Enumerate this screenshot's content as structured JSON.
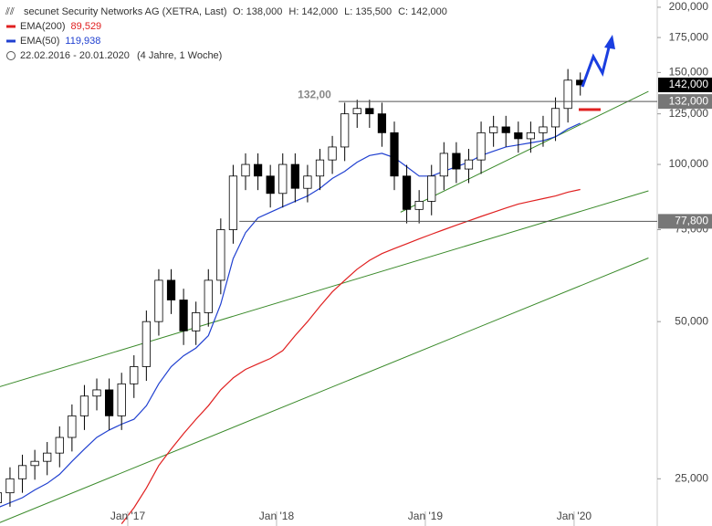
{
  "header": {
    "title": "secunet Security Networks AG (XETRA, Last)",
    "ohlc": [
      {
        "key": "O:",
        "value": "138,000"
      },
      {
        "key": "H:",
        "value": "142,000"
      },
      {
        "key": "L:",
        "value": "135,500"
      },
      {
        "key": "C:",
        "value": "142,000"
      }
    ],
    "range": "22.02.2016 - 20.01.2020",
    "duration": "(4 Jahre, 1 Woche)"
  },
  "chart_data": {
    "type": "candlestick",
    "log_scale": true,
    "x": [
      "2016-02",
      "2016-03",
      "2016-04",
      "2016-05",
      "2016-06",
      "2016-07",
      "2016-08",
      "2016-09",
      "2016-10",
      "2016-11",
      "2016-12",
      "2017-01",
      "2017-02",
      "2017-03",
      "2017-04",
      "2017-05",
      "2017-06",
      "2017-07",
      "2017-08",
      "2017-09",
      "2017-10",
      "2017-11",
      "2017-12",
      "2018-01",
      "2018-02",
      "2018-03",
      "2018-04",
      "2018-05",
      "2018-06",
      "2018-07",
      "2018-08",
      "2018-09",
      "2018-10",
      "2018-11",
      "2018-12",
      "2019-01",
      "2019-02",
      "2019-03",
      "2019-04",
      "2019-05",
      "2019-06",
      "2019-07",
      "2019-08",
      "2019-09",
      "2019-10",
      "2019-11",
      "2019-12",
      "2020-01"
    ],
    "open": [
      22500,
      23500,
      25000,
      26500,
      27000,
      28000,
      30000,
      33000,
      36000,
      37000,
      33000,
      38000,
      41000,
      50000,
      60000,
      55000,
      48000,
      52000,
      60000,
      75000,
      95000,
      100000,
      95000,
      88000,
      100000,
      90000,
      95000,
      102000,
      108000,
      125000,
      128000,
      125000,
      115000,
      95000,
      82000,
      85000,
      95000,
      105000,
      98000,
      102000,
      115000,
      118000,
      115000,
      112000,
      115000,
      118000,
      128000,
      145000
    ],
    "high": [
      24700,
      26300,
      27800,
      28400,
      29400,
      31500,
      34700,
      37800,
      38900,
      38900,
      39900,
      43100,
      52500,
      63000,
      63000,
      57800,
      54600,
      63000,
      78800,
      99800,
      105000,
      105000,
      99800,
      105000,
      105000,
      99800,
      107100,
      113400,
      131300,
      133000,
      133000,
      131300,
      120800,
      99800,
      89300,
      99800,
      110300,
      110300,
      107100,
      120800,
      123900,
      123900,
      120800,
      120800,
      123900,
      134400,
      152300,
      150000
    ],
    "low": [
      21200,
      22100,
      23500,
      24900,
      25400,
      26300,
      28200,
      31000,
      33800,
      31000,
      31000,
      35700,
      38500,
      47000,
      51700,
      45100,
      45100,
      48900,
      56400,
      70500,
      89300,
      89300,
      82700,
      82700,
      84600,
      84600,
      89300,
      95900,
      101500,
      117500,
      117500,
      108100,
      89300,
      77100,
      77100,
      79900,
      89300,
      92100,
      92100,
      95900,
      108100,
      108100,
      105300,
      105300,
      108100,
      110900,
      120300,
      135500
    ],
    "close": [
      23500,
      25000,
      26500,
      27000,
      28000,
      30000,
      33000,
      36000,
      37000,
      33000,
      38000,
      41000,
      50000,
      60000,
      55000,
      48000,
      52000,
      60000,
      75000,
      95000,
      100000,
      95000,
      88000,
      100000,
      90000,
      95000,
      102000,
      108000,
      125000,
      128000,
      125000,
      115000,
      95000,
      82000,
      85000,
      95000,
      105000,
      98000,
      102000,
      115000,
      118000,
      115000,
      112000,
      115000,
      118000,
      128000,
      145000,
      142000
    ],
    "series": [
      {
        "name": "EMA(200)",
        "color": "#e02020",
        "last_label": "89,529",
        "values": [
          null,
          null,
          null,
          null,
          null,
          null,
          null,
          null,
          null,
          null,
          20500,
          22000,
          24000,
          26500,
          28500,
          30500,
          32500,
          34500,
          37000,
          39000,
          40500,
          41500,
          42500,
          44000,
          47000,
          50000,
          53500,
          57000,
          60000,
          63000,
          65500,
          67500,
          69000,
          70500,
          72000,
          73500,
          75000,
          76500,
          78000,
          79500,
          81000,
          82500,
          84000,
          85000,
          86000,
          87000,
          88500,
          89529
        ]
      },
      {
        "name": "EMA(50)",
        "color": "#2040d0",
        "last_label": "119,938",
        "values": [
          22000,
          22500,
          23000,
          23800,
          24500,
          25500,
          27000,
          28500,
          30000,
          31000,
          31800,
          32500,
          34500,
          38000,
          41000,
          43000,
          44500,
          47000,
          54000,
          66000,
          74000,
          79000,
          81000,
          83000,
          85000,
          87000,
          90000,
          94000,
          97000,
          101000,
          104000,
          105000,
          103000,
          99000,
          95000,
          95000,
          97000,
          99000,
          101000,
          104000,
          106000,
          108000,
          109000,
          110000,
          111000,
          113000,
          117000,
          119938
        ]
      }
    ],
    "last_price": {
      "value": 142000,
      "label": "142,000"
    },
    "levels": [
      {
        "value": 132000,
        "label": "132,000",
        "left_label": "132,00",
        "from": "2018-06"
      },
      {
        "value": 77800,
        "label": "77,800",
        "from": "2017-10"
      }
    ],
    "trend_lines": [
      {
        "color": "#3a8a2a",
        "x": [
          "2016-01",
          "2020-07"
        ],
        "y": [
          36500,
          89000
        ]
      },
      {
        "color": "#3a8a2a",
        "x": [
          "2016-02",
          "2020-07"
        ],
        "y": [
          20300,
          66200
        ]
      },
      {
        "color": "#3a8a2a",
        "x": [
          "2018-11",
          "2020-07"
        ],
        "y": [
          81000,
          138000
        ]
      }
    ],
    "xlim": [
      "2016-01",
      "2020-08"
    ],
    "xticks": [
      {
        "value": "2017-01",
        "label": "Jan '17"
      },
      {
        "value": "2018-01",
        "label": "Jan '18"
      },
      {
        "value": "2019-01",
        "label": "Jan '19"
      },
      {
        "value": "2020-01",
        "label": "Jan '20"
      }
    ],
    "ylim": [
      20300,
      206500
    ],
    "yticks": [
      {
        "value": 25000,
        "label": "25,000"
      },
      {
        "value": 50000,
        "label": "50,000"
      },
      {
        "value": 75000,
        "label": "75,000"
      },
      {
        "value": 100000,
        "label": "100,000"
      },
      {
        "value": 125000,
        "label": "125,000"
      },
      {
        "value": 150000,
        "label": "150,000"
      },
      {
        "value": 175000,
        "label": "175,000"
      },
      {
        "value": 200000,
        "label": "200,000"
      }
    ]
  }
}
